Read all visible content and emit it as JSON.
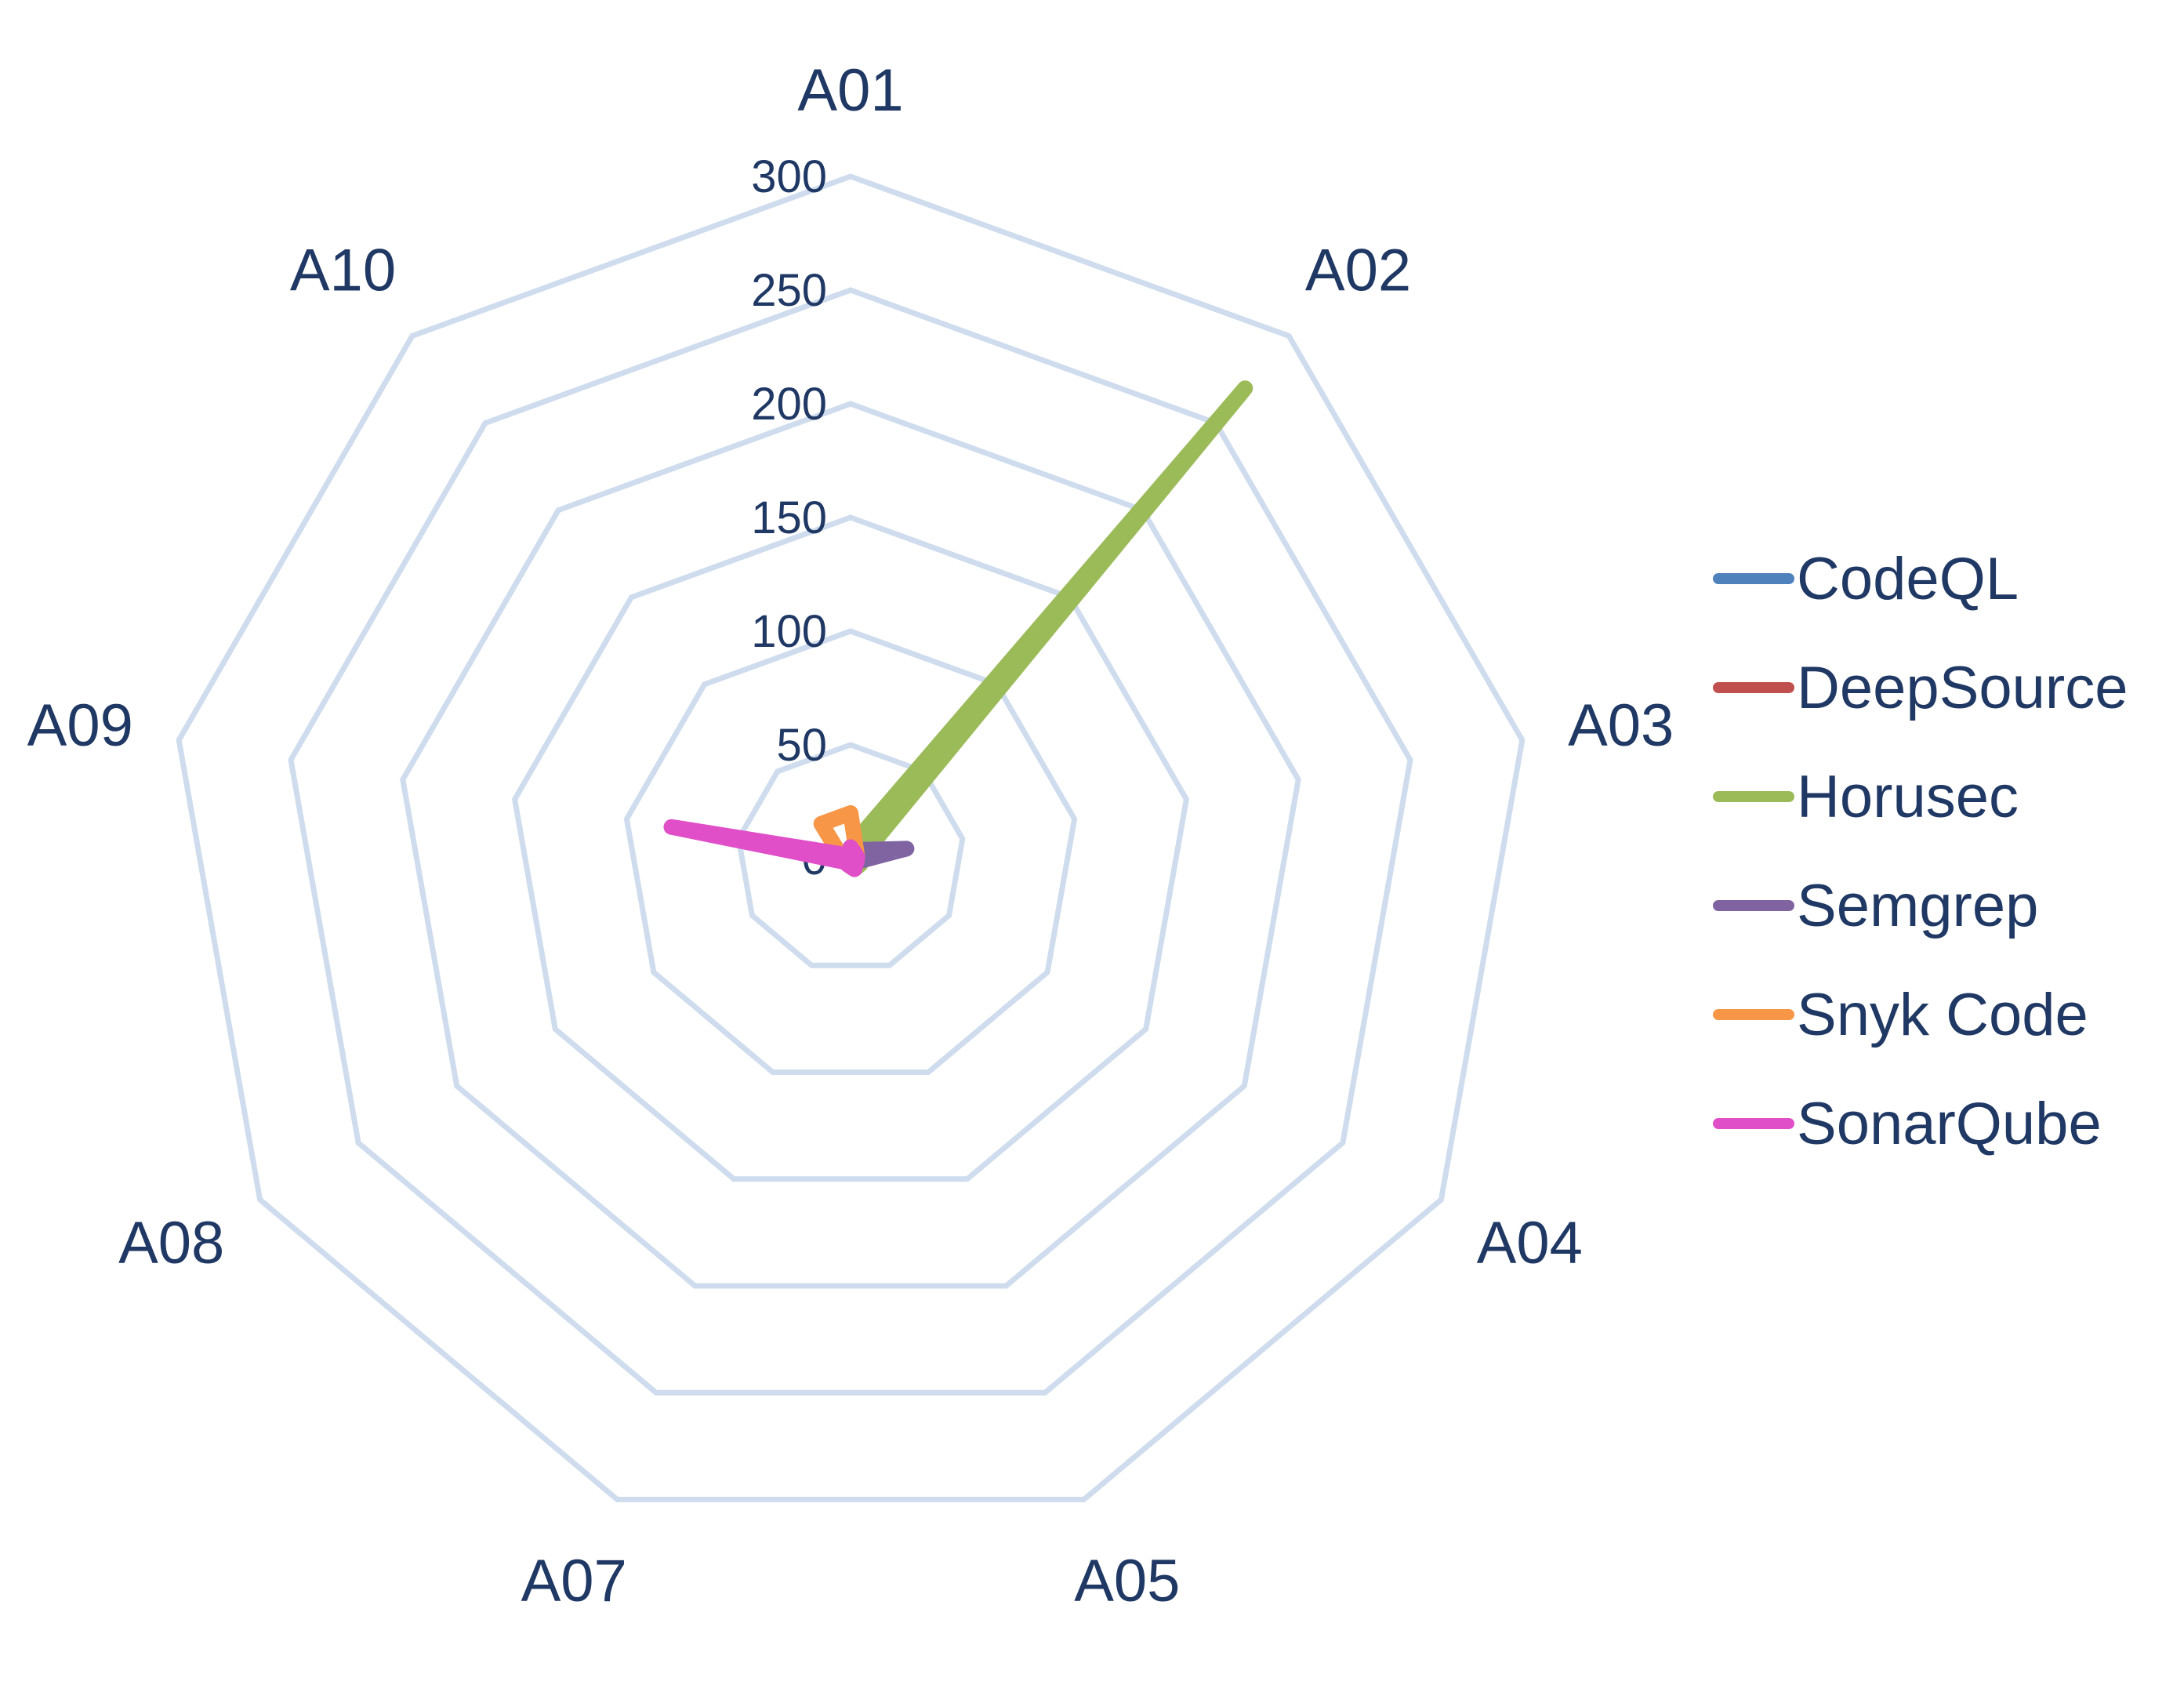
{
  "chart_data": {
    "type": "radar",
    "title": "",
    "categories": [
      "A01",
      "A02",
      "A03",
      "A04",
      "A05",
      "A07",
      "A08",
      "A09",
      "A10"
    ],
    "rlim": [
      0,
      300
    ],
    "ticks": [
      "0",
      "50",
      "100",
      "150",
      "200",
      "250",
      "300"
    ],
    "tick_values": [
      0,
      50,
      100,
      150,
      200,
      250,
      300
    ],
    "grid": true,
    "legend_position": "right",
    "series": [
      {
        "name": "CodeQL",
        "color": "#4f81bd",
        "values": [
          2,
          3,
          2,
          1,
          1,
          1,
          1,
          1,
          2
        ]
      },
      {
        "name": "DeepSource",
        "color": "#c0504d",
        "values": [
          1,
          2,
          1,
          1,
          1,
          1,
          1,
          2,
          1
        ]
      },
      {
        "name": "Horusec",
        "color": "#9bbb59",
        "values": [
          5,
          270,
          5,
          5,
          5,
          3,
          3,
          3,
          3
        ]
      },
      {
        "name": "Semgrep",
        "color": "#8064a2",
        "values": [
          3,
          5,
          25,
          3,
          2,
          2,
          2,
          3,
          2
        ]
      },
      {
        "name": "Snyk Code",
        "color": "#f79646",
        "values": [
          20,
          4,
          3,
          3,
          2,
          2,
          2,
          4,
          20
        ]
      },
      {
        "name": "SonarQube",
        "color": "#e04fc8",
        "values": [
          5,
          3,
          3,
          3,
          5,
          3,
          3,
          80,
          2
        ]
      }
    ]
  }
}
